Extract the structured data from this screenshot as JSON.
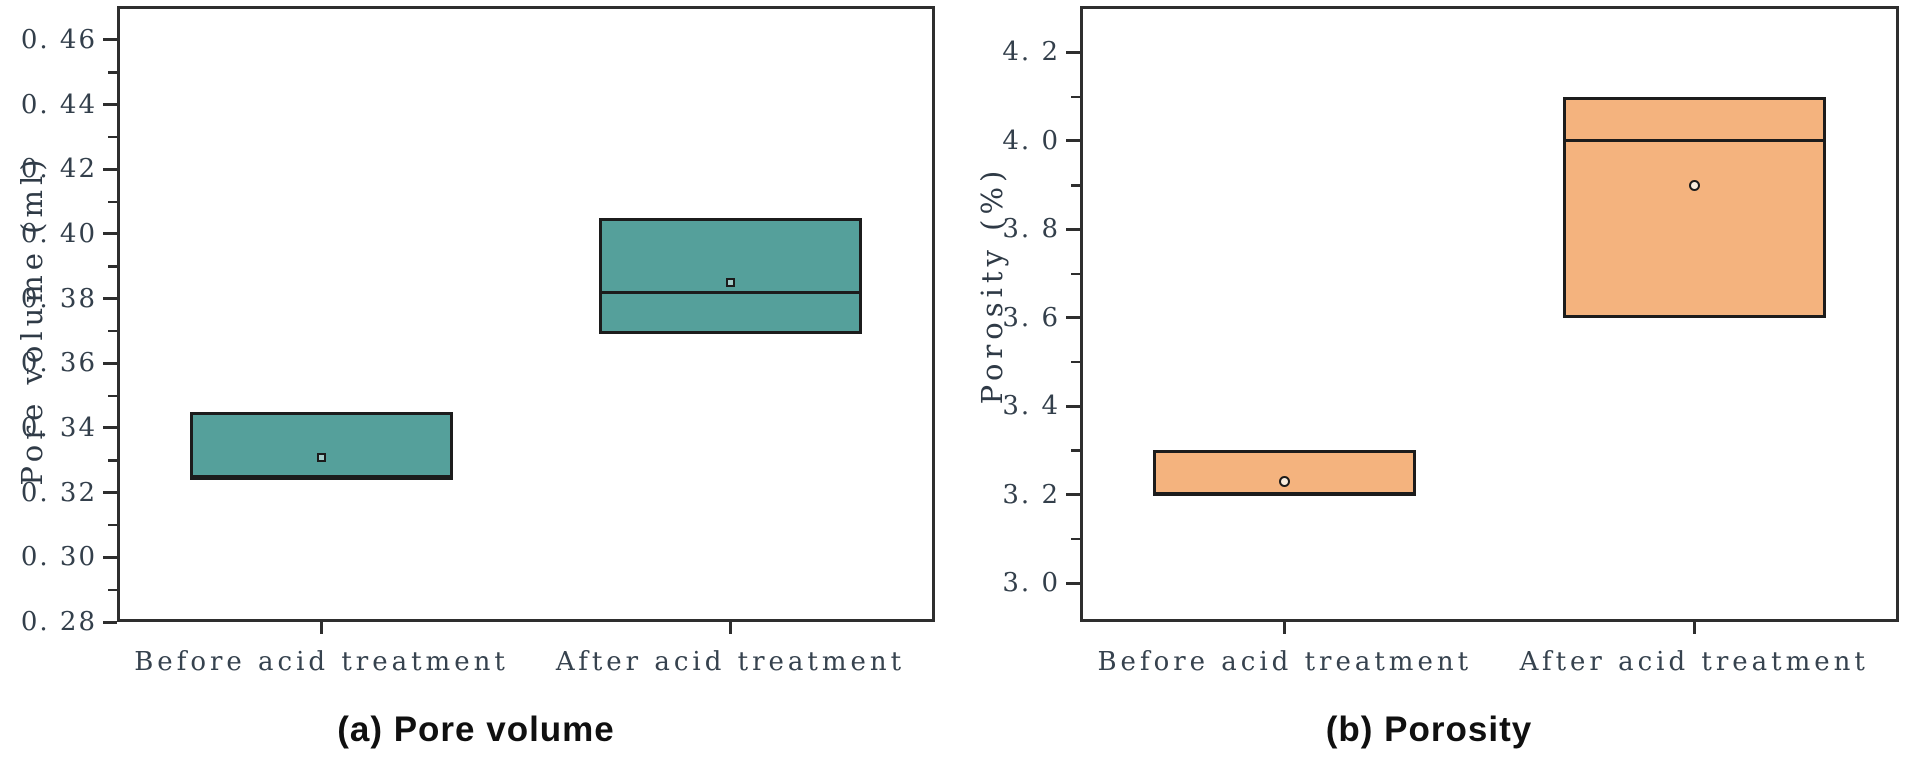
{
  "figure": {
    "background": "#ffffff",
    "frame_color": "#2e2e2e",
    "box_border_color": "#1c1c1c",
    "tick_label_color": "#333f4b",
    "caption_color": "#101010"
  },
  "chart_data": [
    {
      "type": "box",
      "title": "(a) Pore volume",
      "ylabel": "Pore volume (ml)",
      "xlabel": "",
      "categories": [
        "Before acid treatment",
        "After acid treatment"
      ],
      "ylim": [
        0.28,
        0.4705
      ],
      "grid": false,
      "legend": "none",
      "box_fill": "#55a09b",
      "mean_marker": "open-square",
      "y_major_ticks": [
        {
          "value": 0.28,
          "label": "0. 28"
        },
        {
          "value": 0.3,
          "label": "0. 30"
        },
        {
          "value": 0.32,
          "label": "0. 32"
        },
        {
          "value": 0.34,
          "label": "0. 34"
        },
        {
          "value": 0.36,
          "label": "0. 36"
        },
        {
          "value": 0.38,
          "label": "0. 38"
        },
        {
          "value": 0.4,
          "label": "0. 40"
        },
        {
          "value": 0.42,
          "label": "0. 42"
        },
        {
          "value": 0.44,
          "label": "0. 44"
        },
        {
          "value": 0.46,
          "label": "0. 46"
        }
      ],
      "y_minor_ticks": [
        0.29,
        0.31,
        0.33,
        0.35,
        0.37,
        0.39,
        0.41,
        0.43,
        0.45
      ],
      "series": [
        {
          "name": "Before acid treatment",
          "q1": 0.324,
          "median": 0.325,
          "q3": 0.345,
          "mean": 0.331
        },
        {
          "name": "After acid treatment",
          "q1": 0.369,
          "median": 0.382,
          "q3": 0.405,
          "mean": 0.385
        }
      ]
    },
    {
      "type": "box",
      "title": "(b) Porosity",
      "ylabel": "Porosity (%)",
      "xlabel": "",
      "categories": [
        "Before acid treatment",
        "After acid treatment"
      ],
      "ylim": [
        2.912,
        4.305
      ],
      "grid": false,
      "legend": "none",
      "box_fill": "#f4b37e",
      "mean_marker": "open-circle",
      "y_major_ticks": [
        {
          "value": 3.0,
          "label": "3. 0"
        },
        {
          "value": 3.2,
          "label": "3. 2"
        },
        {
          "value": 3.4,
          "label": "3. 4"
        },
        {
          "value": 3.6,
          "label": "3. 6"
        },
        {
          "value": 3.8,
          "label": "3. 8"
        },
        {
          "value": 4.0,
          "label": "4. 0"
        },
        {
          "value": 4.2,
          "label": "4. 2"
        }
      ],
      "y_minor_ticks": [
        3.1,
        3.3,
        3.5,
        3.7,
        3.9,
        4.1
      ],
      "series": [
        {
          "name": "Before acid treatment",
          "q1": 3.2,
          "median": 3.2,
          "q3": 3.3,
          "mean": 3.23
        },
        {
          "name": "After acid treatment",
          "q1": 3.6,
          "median": 4.0,
          "q3": 4.1,
          "mean": 3.9
        }
      ]
    }
  ]
}
